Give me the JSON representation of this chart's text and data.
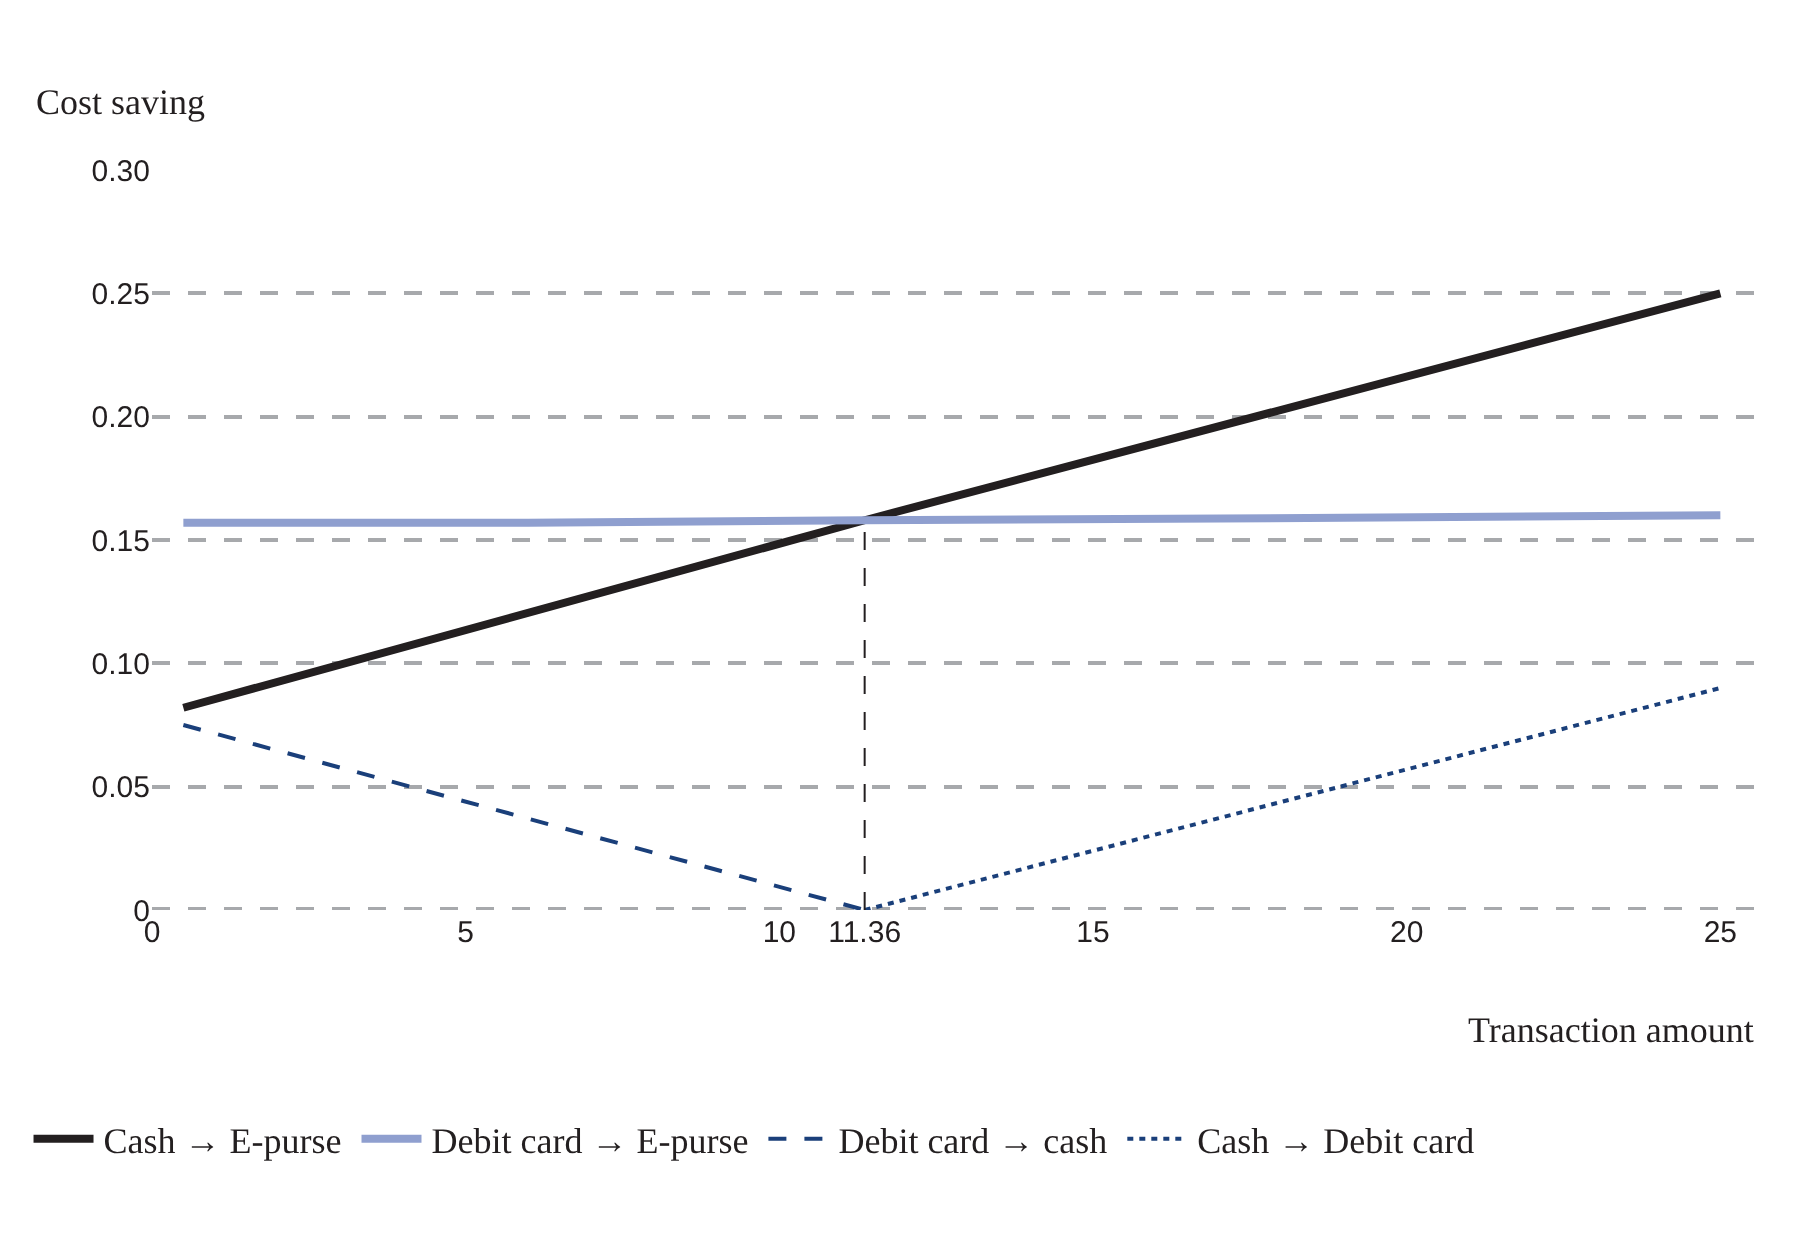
{
  "chart_data": {
    "type": "line",
    "ylabel": "Cost saving",
    "xlabel": "Transaction amount",
    "xlim": [
      0,
      25.6
    ],
    "xticks": [
      0,
      5,
      10,
      11.36,
      15,
      20,
      25
    ],
    "ylim": [
      0,
      0.3
    ],
    "yticks": [
      0,
      {
        "value": 0.05,
        "label": "0.05"
      },
      {
        "value": 0.1,
        "label": "0.10"
      },
      {
        "value": 0.15,
        "label": "0.15"
      },
      {
        "value": 0.2,
        "label": "0.20"
      },
      {
        "value": 0.25,
        "label": "0.25"
      },
      {
        "value": 0.3,
        "label": "0.30"
      }
    ],
    "grid": "y",
    "legend": "bottom",
    "marker": "none",
    "series": [
      {
        "name": "Cash → E-purse",
        "color": "#231f20",
        "line_style": "solid",
        "x": [
          0.5,
          11.36,
          25
        ],
        "values": [
          0.082,
          0.158,
          0.25
        ]
      },
      {
        "name": "Debit card → E-purse",
        "color": "#8f9fcf",
        "line_style": "solid",
        "x": [
          0.5,
          6,
          11.36,
          19,
          25
        ],
        "values": [
          0.157,
          0.157,
          0.158,
          0.159,
          0.16
        ]
      },
      {
        "name": "Debit card → cash",
        "color": "#1a3f7a",
        "line_style": "dashed",
        "x": [
          0.5,
          11.36
        ],
        "values": [
          0.075,
          0
        ]
      },
      {
        "name": "Cash → Debit card",
        "color": "#1a3f7a",
        "line_style": "dotted",
        "x": [
          11.36,
          25
        ],
        "values": [
          0,
          0.09
        ]
      },
      {
        "color": "#231f20",
        "line_style": "dashed",
        "x": [
          11.36,
          11.36
        ],
        "values": [
          0,
          0.158
        ]
      }
    ]
  }
}
